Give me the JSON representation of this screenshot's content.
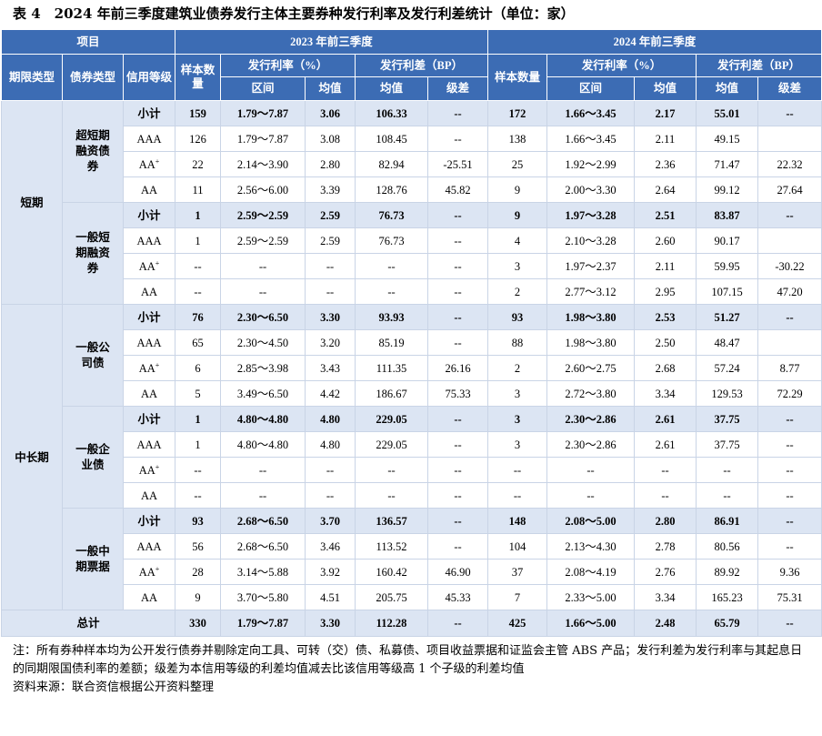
{
  "title": "表 4　2024 年前三季度建筑业债券发行主体主要券种发行利率及发行利差统计（单位：家）",
  "header": {
    "item": "项目",
    "y2023": "2023 年前三季度",
    "y2024": "2024 年前三季度",
    "term_type": "期限类型",
    "bond_type": "债券类型",
    "rating": "信用等级",
    "sample": "样本数量",
    "rate": "发行利率（%）",
    "spread": "发行利差（BP）",
    "range": "区间",
    "mean": "均值",
    "spread_mean": "均值",
    "diff": "级差"
  },
  "groups": [
    {
      "term": "短期",
      "bonds": [
        {
          "name": "超短期融资债券",
          "rows": [
            {
              "rating": "小计",
              "sup": "",
              "s23": "159",
              "r23": "1.79～7.87",
              "m23": "3.06",
              "sp23": "106.33",
              "d23": "--",
              "s24": "172",
              "r24": "1.66～3.45",
              "m24": "2.17",
              "sp24": "55.01",
              "d24": "--"
            },
            {
              "rating": "AAA",
              "sup": "",
              "s23": "126",
              "r23": "1.79～7.87",
              "m23": "3.08",
              "sp23": "108.45",
              "d23": "--",
              "s24": "138",
              "r24": "1.66～3.45",
              "m24": "2.11",
              "sp24": "49.15",
              "d24": ""
            },
            {
              "rating": "AA",
              "sup": "+",
              "s23": "22",
              "r23": "2.14～3.90",
              "m23": "2.80",
              "sp23": "82.94",
              "d23": "-25.51",
              "s24": "25",
              "r24": "1.92～2.99",
              "m24": "2.36",
              "sp24": "71.47",
              "d24": "22.32"
            },
            {
              "rating": "AA",
              "sup": "",
              "s23": "11",
              "r23": "2.56～6.00",
              "m23": "3.39",
              "sp23": "128.76",
              "d23": "45.82",
              "s24": "9",
              "r24": "2.00～3.30",
              "m24": "2.64",
              "sp24": "99.12",
              "d24": "27.64"
            }
          ]
        },
        {
          "name": "一般短期融资券",
          "rows": [
            {
              "rating": "小计",
              "sup": "",
              "s23": "1",
              "r23": "2.59～2.59",
              "m23": "2.59",
              "sp23": "76.73",
              "d23": "--",
              "s24": "9",
              "r24": "1.97～3.28",
              "m24": "2.51",
              "sp24": "83.87",
              "d24": "--"
            },
            {
              "rating": "AAA",
              "sup": "",
              "s23": "1",
              "r23": "2.59～2.59",
              "m23": "2.59",
              "sp23": "76.73",
              "d23": "--",
              "s24": "4",
              "r24": "2.10～3.28",
              "m24": "2.60",
              "sp24": "90.17",
              "d24": ""
            },
            {
              "rating": "AA",
              "sup": "+",
              "s23": "--",
              "r23": "--",
              "m23": "--",
              "sp23": "--",
              "d23": "--",
              "s24": "3",
              "r24": "1.97～2.37",
              "m24": "2.11",
              "sp24": "59.95",
              "d24": "-30.22"
            },
            {
              "rating": "AA",
              "sup": "",
              "s23": "--",
              "r23": "--",
              "m23": "--",
              "sp23": "--",
              "d23": "--",
              "s24": "2",
              "r24": "2.77～3.12",
              "m24": "2.95",
              "sp24": "107.15",
              "d24": "47.20"
            }
          ]
        }
      ]
    },
    {
      "term": "中长期",
      "bonds": [
        {
          "name": "一般公司债",
          "rows": [
            {
              "rating": "小计",
              "sup": "",
              "s23": "76",
              "r23": "2.30～6.50",
              "m23": "3.30",
              "sp23": "93.93",
              "d23": "--",
              "s24": "93",
              "r24": "1.98～3.80",
              "m24": "2.53",
              "sp24": "51.27",
              "d24": "--"
            },
            {
              "rating": "AAA",
              "sup": "",
              "s23": "65",
              "r23": "2.30～4.50",
              "m23": "3.20",
              "sp23": "85.19",
              "d23": "--",
              "s24": "88",
              "r24": "1.98～3.80",
              "m24": "2.50",
              "sp24": "48.47",
              "d24": ""
            },
            {
              "rating": "AA",
              "sup": "+",
              "s23": "6",
              "r23": "2.85～3.98",
              "m23": "3.43",
              "sp23": "111.35",
              "d23": "26.16",
              "s24": "2",
              "r24": "2.60～2.75",
              "m24": "2.68",
              "sp24": "57.24",
              "d24": "8.77"
            },
            {
              "rating": "AA",
              "sup": "",
              "s23": "5",
              "r23": "3.49～6.50",
              "m23": "4.42",
              "sp23": "186.67",
              "d23": "75.33",
              "s24": "3",
              "r24": "2.72～3.80",
              "m24": "3.34",
              "sp24": "129.53",
              "d24": "72.29"
            }
          ]
        },
        {
          "name": "一般企业债",
          "rows": [
            {
              "rating": "小计",
              "sup": "",
              "s23": "1",
              "r23": "4.80～4.80",
              "m23": "4.80",
              "sp23": "229.05",
              "d23": "--",
              "s24": "3",
              "r24": "2.30～2.86",
              "m24": "2.61",
              "sp24": "37.75",
              "d24": "--"
            },
            {
              "rating": "AAA",
              "sup": "",
              "s23": "1",
              "r23": "4.80～4.80",
              "m23": "4.80",
              "sp23": "229.05",
              "d23": "--",
              "s24": "3",
              "r24": "2.30～2.86",
              "m24": "2.61",
              "sp24": "37.75",
              "d24": "--"
            },
            {
              "rating": "AA",
              "sup": "+",
              "s23": "--",
              "r23": "--",
              "m23": "--",
              "sp23": "--",
              "d23": "--",
              "s24": "--",
              "r24": "--",
              "m24": "--",
              "sp24": "--",
              "d24": "--"
            },
            {
              "rating": "AA",
              "sup": "",
              "s23": "--",
              "r23": "--",
              "m23": "--",
              "sp23": "--",
              "d23": "--",
              "s24": "--",
              "r24": "--",
              "m24": "--",
              "sp24": "--",
              "d24": "--"
            }
          ]
        },
        {
          "name": "一般中期票据",
          "rows": [
            {
              "rating": "小计",
              "sup": "",
              "s23": "93",
              "r23": "2.68～6.50",
              "m23": "3.70",
              "sp23": "136.57",
              "d23": "--",
              "s24": "148",
              "r24": "2.08～5.00",
              "m24": "2.80",
              "sp24": "86.91",
              "d24": "--"
            },
            {
              "rating": "AAA",
              "sup": "",
              "s23": "56",
              "r23": "2.68～6.50",
              "m23": "3.46",
              "sp23": "113.52",
              "d23": "--",
              "s24": "104",
              "r24": "2.13～4.30",
              "m24": "2.78",
              "sp24": "80.56",
              "d24": "--"
            },
            {
              "rating": "AA",
              "sup": "+",
              "s23": "28",
              "r23": "3.14～5.88",
              "m23": "3.92",
              "sp23": "160.42",
              "d23": "46.90",
              "s24": "37",
              "r24": "2.08～4.19",
              "m24": "2.76",
              "sp24": "89.92",
              "d24": "9.36"
            },
            {
              "rating": "AA",
              "sup": "",
              "s23": "9",
              "r23": "3.70～5.80",
              "m23": "4.51",
              "sp23": "205.75",
              "d23": "45.33",
              "s24": "7",
              "r24": "2.33～5.00",
              "m24": "3.34",
              "sp24": "165.23",
              "d24": "75.31"
            }
          ]
        }
      ]
    }
  ],
  "total": {
    "label": "总计",
    "s23": "330",
    "r23": "1.79～7.87",
    "m23": "3.30",
    "sp23": "112.28",
    "d23": "--",
    "s24": "425",
    "r24": "1.66～5.00",
    "m24": "2.48",
    "sp24": "65.79",
    "d24": "--"
  },
  "notes": {
    "note1": "注：所有券种样本均为公开发行债券并剔除定向工具、可转（交）债、私募债、项目收益票据和证监会主管 ABS 产品；发行利差为发行利率与其起息日的同期限国债利率的差额；级差为本信用等级的利差均值减去比该信用等级高 1 个子级的利差均值",
    "source": "资料来源：联合资信根据公开资料整理"
  }
}
